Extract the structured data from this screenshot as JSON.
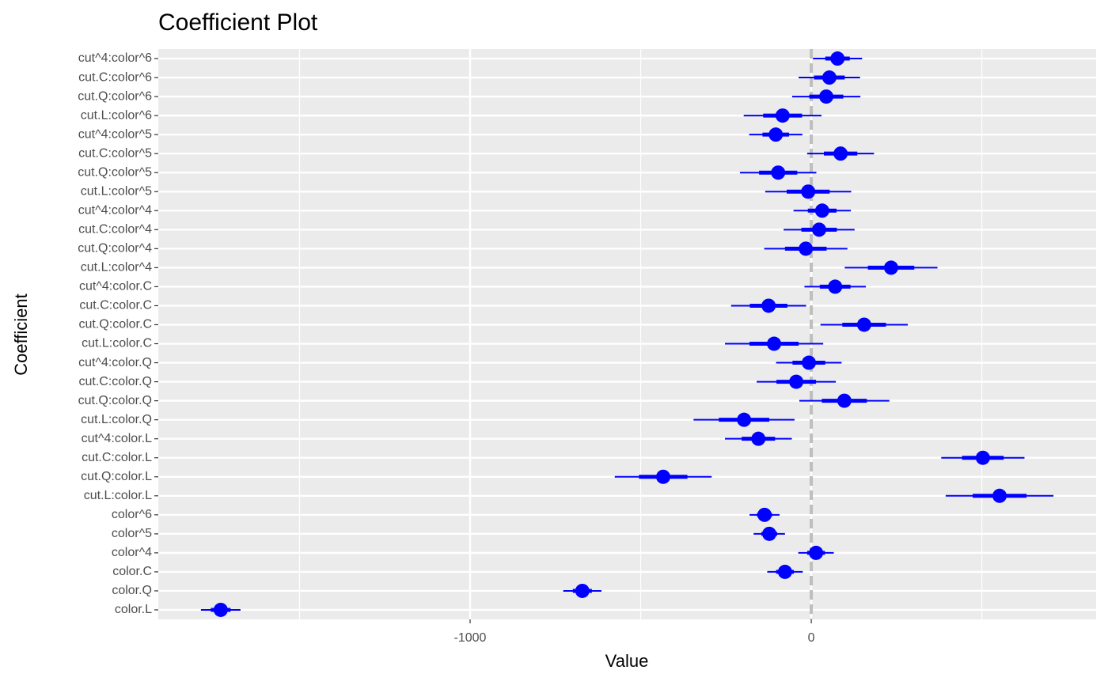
{
  "chart_data": {
    "type": "coefplot",
    "title": "Coefficient Plot",
    "x_label": "Value",
    "y_label": "Coefficient",
    "categories": [
      "color.L",
      "color.Q",
      "color.C",
      "color^4",
      "color^5",
      "color^6",
      "cut.L:color.L",
      "cut.Q:color.L",
      "cut.C:color.L",
      "cut^4:color.L",
      "cut.L:color.Q",
      "cut.Q:color.Q",
      "cut.C:color.Q",
      "cut^4:color.Q",
      "cut.L:color.C",
      "cut.Q:color.C",
      "cut.C:color.C",
      "cut^4:color.C",
      "cut.L:color^4",
      "cut.Q:color^4",
      "cut.C:color^4",
      "cut^4:color^4",
      "cut.L:color^5",
      "cut.Q:color^5",
      "cut.C:color^5",
      "cut^4:color^5",
      "cut.L:color^6",
      "cut.Q:color^6",
      "cut.C:color^6",
      "cut^4:color^6"
    ],
    "values": [
      -1731,
      -671,
      -77,
      14,
      -123,
      -137,
      552,
      -434,
      503,
      -155,
      -197,
      97,
      -44,
      -7,
      -109,
      155,
      -125,
      70,
      234,
      -16,
      23,
      32,
      -9,
      -97,
      86,
      -104,
      -84,
      44,
      53,
      77
    ],
    "errors": [
      29,
      28,
      26,
      26,
      23,
      22,
      79,
      71,
      61,
      49,
      74,
      66,
      58,
      48,
      72,
      64,
      55,
      45,
      68,
      61,
      52,
      42,
      63,
      56,
      49,
      39,
      57,
      50,
      45,
      36
    ],
    "color": "#0000ff",
    "reference_line": 0,
    "xlim": [
      -1914,
      835
    ],
    "xticks": [
      -1000,
      0
    ],
    "minor_xticks": [
      -1500,
      -500,
      500
    ],
    "grid": true
  }
}
